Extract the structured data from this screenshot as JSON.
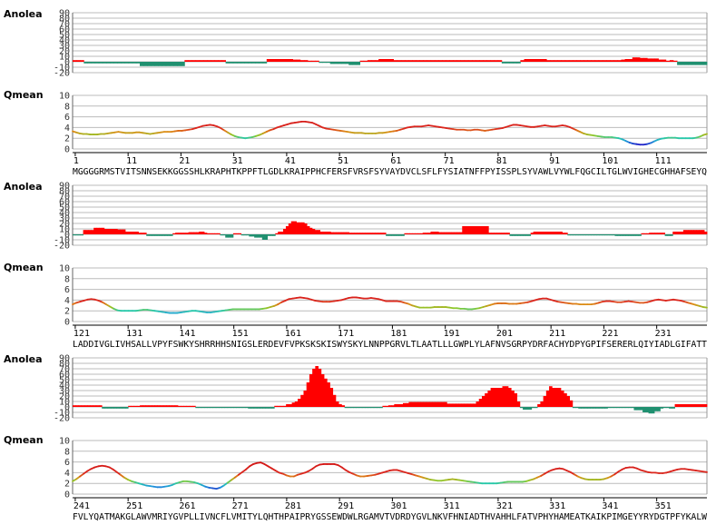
{
  "residue_count": 360,
  "per_block": 120,
  "labels": {
    "anolea": "Anolea",
    "qmean": "Qmean"
  },
  "anolea_ticks": [
    "90",
    "80",
    "70",
    "60",
    "50",
    "40",
    "30",
    "20",
    "10",
    "0",
    "-10",
    "-20"
  ],
  "qmean_ticks": [
    "10",
    "8",
    "6",
    "4",
    "2",
    "0"
  ],
  "colors": {
    "positive": "#ff0000",
    "negative": "#209070",
    "grid": "#bbbbbb"
  },
  "blocks": [
    {
      "start": 1,
      "sequence": "MGGGGRMSTVITSNNSEKKGGSSHLKRAPHTKPPFTLGDLKRAIPPHCFERSFVRSFSYVAYDVCLSFLFYSIATNFFPYISSPLSYVAWLVYWLFQGCILTGLWVIGHECGHHAFSEYQ",
      "numbers": [
        "1",
        "11",
        "21",
        "31",
        "41",
        "51",
        "61",
        "71",
        "81",
        "91",
        "101",
        "111"
      ],
      "anolea": [
        3,
        3,
        3,
        -3,
        -3,
        -3,
        -3,
        -3,
        -3,
        -3,
        -3,
        -3,
        -3,
        -3,
        -3,
        -3,
        -3,
        -3,
        -8,
        -8,
        -8,
        -8,
        -8,
        -8,
        -8,
        -8,
        -8,
        -8,
        -8,
        -8,
        3,
        3,
        3,
        3,
        3,
        3,
        3,
        3,
        3,
        3,
        3,
        -3,
        -3,
        -3,
        -3,
        -3,
        -3,
        -3,
        -3,
        -3,
        -3,
        -3,
        5,
        5,
        5,
        5,
        5,
        5,
        5,
        4,
        4,
        3,
        3,
        2,
        2,
        2,
        -2,
        -2,
        -2,
        -4,
        -4,
        -4,
        -4,
        -4,
        -6,
        -6,
        -6,
        2,
        2,
        3,
        3,
        3,
        5,
        5,
        5,
        5,
        3,
        3,
        3,
        3,
        3,
        3,
        3,
        3,
        3,
        3,
        3,
        3,
        3,
        3,
        3,
        3,
        3,
        3,
        3,
        3,
        3,
        3,
        3,
        3,
        3,
        3,
        3,
        3,
        3,
        -3,
        -3,
        -3,
        -3,
        -3,
        3,
        5,
        5,
        5,
        5,
        5,
        5,
        3,
        3,
        3,
        3,
        3,
        3,
        3,
        3,
        3,
        3,
        3,
        3,
        3,
        3,
        3,
        3,
        3,
        3,
        3,
        3,
        4,
        5,
        5,
        8,
        8,
        7,
        7,
        6,
        6,
        6,
        4,
        4,
        2,
        3,
        2,
        -6,
        -6,
        -6,
        -6,
        -6,
        -6,
        -6,
        -6
      ],
      "qmean": [
        3.3,
        3.1,
        2.9,
        2.8,
        2.8,
        2.7,
        2.7,
        2.7,
        2.8,
        2.8,
        2.9,
        3.0,
        3.1,
        3.2,
        3.1,
        3.0,
        3.0,
        3.0,
        3.1,
        3.1,
        3.0,
        2.9,
        2.8,
        2.9,
        3.0,
        3.1,
        3.2,
        3.2,
        3.2,
        3.3,
        3.4,
        3.4,
        3.5,
        3.6,
        3.7,
        3.9,
        4.1,
        4.3,
        4.4,
        4.5,
        4.4,
        4.2,
        3.9,
        3.5,
        3.1,
        2.7,
        2.4,
        2.2,
        2.1,
        2.0,
        2.1,
        2.2,
        2.4,
        2.6,
        2.9,
        3.2,
        3.5,
        3.7,
        4.0,
        4.2,
        4.4,
        4.6,
        4.8,
        4.9,
        5.0,
        5.1,
        5.1,
        5.0,
        4.9,
        4.6,
        4.3,
        4.0,
        3.8,
        3.7,
        3.6,
        3.5,
        3.4,
        3.3,
        3.2,
        3.1,
        3.0,
        3.0,
        3.0,
        2.9,
        2.9,
        2.9,
        2.9,
        3.0,
        3.0,
        3.1,
        3.2,
        3.3,
        3.4,
        3.6,
        3.8,
        4.0,
        4.1,
        4.2,
        4.2,
        4.2,
        4.3,
        4.4,
        4.3,
        4.2,
        4.1,
        4.0,
        3.9,
        3.8,
        3.7,
        3.6,
        3.6,
        3.6,
        3.5,
        3.5,
        3.6,
        3.6,
        3.5,
        3.4,
        3.5,
        3.6,
        3.7,
        3.8,
        3.9,
        4.1,
        4.3,
        4.5,
        4.5,
        4.4,
        4.3,
        4.2,
        4.1,
        4.1,
        4.2,
        4.3,
        4.4,
        4.3,
        4.2,
        4.2,
        4.3,
        4.4,
        4.3,
        4.1,
        3.8,
        3.5,
        3.2,
        2.9,
        2.7,
        2.6,
        2.5,
        2.4,
        2.3,
        2.2,
        2.2,
        2.2,
        2.1,
        2.0,
        1.8,
        1.5,
        1.2,
        1.0,
        0.9,
        0.8,
        0.8,
        0.9,
        1.1,
        1.4,
        1.7,
        1.9,
        2.0,
        2.1,
        2.1,
        2.1,
        2.0,
        2.0,
        2.0,
        2.0,
        2.0,
        2.1,
        2.3,
        2.6,
        2.8
      ]
    },
    {
      "start": 121,
      "sequence": "LADDIVGLIVHSALLVPYFSWKYSHRRHHSNIGSLERDEVFVPKSKSKISWYSKYLNNPPGRVLTLAATLLLGWPLYLAFNVSGRPYDRFACHYDPYGPIFSERERLQIYIADLGIFATT",
      "numbers": [
        "121",
        "131",
        "141",
        "151",
        "161",
        "171",
        "181",
        "191",
        "201",
        "211",
        "221",
        "231"
      ],
      "anolea": [
        -2,
        -2,
        -2,
        -2,
        8,
        8,
        8,
        8,
        12,
        12,
        12,
        12,
        10,
        10,
        10,
        10,
        10,
        9,
        9,
        9,
        5,
        5,
        5,
        5,
        5,
        3,
        3,
        3,
        -3,
        -3,
        -3,
        -3,
        -3,
        -3,
        -3,
        -3,
        -3,
        -3,
        2,
        3,
        3,
        3,
        3,
        3,
        4,
        4,
        4,
        4,
        5,
        5,
        3,
        2,
        2,
        2,
        2,
        2,
        -2,
        -2,
        -6,
        -6,
        -6,
        2,
        2,
        2,
        -2,
        -2,
        -2,
        -4,
        -4,
        -6,
        -6,
        -6,
        -10,
        -10,
        -3,
        -3,
        -3,
        2,
        5,
        5,
        10,
        15,
        20,
        24,
        24,
        22,
        22,
        22,
        20,
        15,
        12,
        10,
        8,
        8,
        5,
        5,
        5,
        5,
        4,
        4,
        4,
        4,
        4,
        4,
        4,
        3,
        3,
        3,
        3,
        3,
        3,
        3,
        3,
        3,
        3,
        3,
        3,
        3,
        3,
        -3,
        -3,
        -3,
        -3,
        -3,
        -3,
        -3,
        2,
        2,
        2,
        2,
        2,
        2,
        2,
        3,
        3,
        3,
        5,
        5,
        5,
        4,
        4,
        4,
        4,
        4,
        4,
        4,
        4,
        4,
        15,
        15,
        15,
        15,
        15,
        15,
        15,
        15,
        15,
        15,
        3,
        3,
        3,
        3,
        3,
        3,
        3,
        3,
        -3,
        -3,
        -3,
        -3,
        -3,
        -3,
        -3,
        -3,
        3,
        5,
        5,
        5,
        5,
        5,
        5,
        5,
        5,
        5,
        5,
        5,
        3,
        3,
        -2,
        -2,
        -2,
        -2,
        -2,
        -2,
        -2,
        -2,
        -2,
        -2,
        -2,
        -2,
        -2,
        -2,
        -2,
        -2,
        -2,
        -2,
        -3,
        -3,
        -3,
        -3,
        -3,
        -3,
        -3,
        -3,
        -3,
        -3,
        2,
        2,
        2,
        3,
        3,
        3,
        3,
        3,
        3,
        -3,
        -3,
        -3,
        5,
        5,
        5,
        5,
        8,
        8,
        8,
        8,
        8,
        8,
        8,
        8,
        5
      ],
      "qmean": [
        3.2,
        3.5,
        3.7,
        3.9,
        4.1,
        4.2,
        4.1,
        3.9,
        3.6,
        3.2,
        2.8,
        2.4,
        2.1,
        2.0,
        2.0,
        2.0,
        2.0,
        2.0,
        2.1,
        2.2,
        2.2,
        2.1,
        2.0,
        1.9,
        1.8,
        1.7,
        1.6,
        1.6,
        1.6,
        1.7,
        1.8,
        1.9,
        2.0,
        2.0,
        1.9,
        1.8,
        1.7,
        1.7,
        1.8,
        1.9,
        2.0,
        2.1,
        2.2,
        2.3,
        2.3,
        2.3,
        2.3,
        2.3,
        2.3,
        2.3,
        2.3,
        2.4,
        2.5,
        2.7,
        2.9,
        3.2,
        3.6,
        3.9,
        4.2,
        4.3,
        4.4,
        4.5,
        4.4,
        4.3,
        4.1,
        3.9,
        3.8,
        3.7,
        3.7,
        3.7,
        3.8,
        3.9,
        4.0,
        4.2,
        4.4,
        4.5,
        4.5,
        4.4,
        4.3,
        4.3,
        4.4,
        4.3,
        4.2,
        4.0,
        3.8,
        3.8,
        3.8,
        3.8,
        3.7,
        3.5,
        3.3,
        3.0,
        2.8,
        2.6,
        2.6,
        2.6,
        2.6,
        2.7,
        2.7,
        2.7,
        2.7,
        2.6,
        2.5,
        2.5,
        2.4,
        2.4,
        2.3,
        2.3,
        2.4,
        2.5,
        2.7,
        2.9,
        3.1,
        3.3,
        3.4,
        3.4,
        3.4,
        3.3,
        3.3,
        3.3,
        3.4,
        3.5,
        3.6,
        3.8,
        4.0,
        4.2,
        4.3,
        4.3,
        4.1,
        3.9,
        3.7,
        3.6,
        3.5,
        3.4,
        3.3,
        3.3,
        3.2,
        3.2,
        3.2,
        3.2,
        3.3,
        3.5,
        3.7,
        3.8,
        3.8,
        3.7,
        3.6,
        3.6,
        3.7,
        3.8,
        3.7,
        3.6,
        3.5,
        3.5,
        3.6,
        3.8,
        4.0,
        4.1,
        4.0,
        3.9,
        4.0,
        4.1,
        4.0,
        3.9,
        3.7,
        3.5,
        3.3,
        3.1,
        2.9,
        2.7,
        2.6
      ]
    },
    {
      "start": 241,
      "sequence": "FVLYQATMAKGLAWVMRIYGVPLLIVNCFLVMITYLQHTHPAIPRYGSSEWDWLRGAMVTVDRDYGVLNKVFHNIADTHVAHHLFATVPHYHAMEATKAIKPIMGEYYRYDGTPFYKALW",
      "numbers": [
        "241",
        "251",
        "261",
        "271",
        "281",
        "291",
        "301",
        "311",
        "321",
        "331",
        "341",
        "351"
      ],
      "anolea": [
        3,
        3,
        3,
        3,
        3,
        3,
        3,
        3,
        3,
        3,
        -3,
        -3,
        -3,
        -3,
        -3,
        -3,
        -3,
        -3,
        -3,
        2,
        2,
        2,
        2,
        3,
        3,
        3,
        3,
        3,
        3,
        3,
        3,
        3,
        3,
        3,
        3,
        3,
        2,
        2,
        2,
        2,
        2,
        2,
        -2,
        -2,
        -2,
        -2,
        -2,
        -2,
        -2,
        -2,
        -2,
        -2,
        -2,
        -2,
        -2,
        -2,
        -2,
        -2,
        -2,
        -2,
        -3,
        -3,
        -3,
        -3,
        -3,
        -3,
        -3,
        -3,
        -3,
        2,
        2,
        2,
        2,
        5,
        5,
        8,
        10,
        15,
        22,
        30,
        45,
        60,
        70,
        75,
        70,
        60,
        52,
        45,
        35,
        22,
        10,
        5,
        3,
        -2,
        -2,
        -2,
        -2,
        -2,
        -2,
        -2,
        -2,
        -2,
        -2,
        -2,
        -2,
        -2,
        2,
        2,
        3,
        3,
        5,
        5,
        5,
        7,
        7,
        9,
        9,
        9,
        9,
        9,
        9,
        9,
        9,
        9,
        9,
        9,
        9,
        9,
        6,
        6,
        6,
        6,
        6,
        6,
        6,
        6,
        6,
        6,
        10,
        15,
        20,
        25,
        30,
        35,
        35,
        35,
        35,
        38,
        38,
        35,
        30,
        25,
        10,
        -2,
        -5,
        -5,
        -5,
        -2,
        -2,
        5,
        10,
        20,
        30,
        38,
        35,
        35,
        35,
        30,
        25,
        20,
        12,
        -2,
        -2,
        -3,
        -3,
        -3,
        -3,
        -3,
        -3,
        -3,
        -3,
        -3,
        -3,
        -2,
        -2,
        -2,
        -2,
        -2,
        -2,
        -2,
        -2,
        -2,
        -6,
        -6,
        -6,
        -10,
        -10,
        -12,
        -12,
        -8,
        -8,
        -3,
        -2,
        -2,
        -3,
        -3,
        5,
        5,
        5,
        5,
        5,
        5,
        5,
        5,
        5,
        5,
        5
      ],
      "qmean": [
        2.4,
        2.8,
        3.3,
        3.8,
        4.3,
        4.7,
        5.0,
        5.2,
        5.3,
        5.2,
        5.0,
        4.6,
        4.1,
        3.6,
        3.1,
        2.7,
        2.4,
        2.2,
        2.0,
        1.8,
        1.6,
        1.5,
        1.4,
        1.3,
        1.3,
        1.4,
        1.5,
        1.7,
        2.0,
        2.2,
        2.4,
        2.4,
        2.3,
        2.2,
        2.0,
        1.7,
        1.4,
        1.2,
        1.1,
        1.0,
        1.2,
        1.6,
        2.1,
        2.6,
        3.1,
        3.6,
        4.1,
        4.6,
        5.2,
        5.6,
        5.8,
        5.9,
        5.6,
        5.2,
        4.8,
        4.4,
        4.0,
        3.8,
        3.5,
        3.3,
        3.3,
        3.6,
        3.8,
        4.0,
        4.3,
        4.7,
        5.2,
        5.5,
        5.6,
        5.6,
        5.6,
        5.6,
        5.4,
        5.0,
        4.5,
        4.1,
        3.8,
        3.5,
        3.3,
        3.3,
        3.4,
        3.5,
        3.6,
        3.8,
        4.0,
        4.2,
        4.4,
        4.5,
        4.5,
        4.3,
        4.1,
        3.9,
        3.7,
        3.5,
        3.3,
        3.1,
        2.9,
        2.7,
        2.6,
        2.5,
        2.5,
        2.6,
        2.7,
        2.8,
        2.7,
        2.6,
        2.5,
        2.4,
        2.3,
        2.2,
        2.1,
        2.0,
        2.0,
        2.0,
        2.0,
        2.0,
        2.1,
        2.2,
        2.3,
        2.3,
        2.3,
        2.3,
        2.3,
        2.4,
        2.6,
        2.8,
        3.1,
        3.4,
        3.8,
        4.2,
        4.5,
        4.7,
        4.8,
        4.7,
        4.4,
        4.1,
        3.7,
        3.3,
        3.0,
        2.8,
        2.7,
        2.7,
        2.7,
        2.7,
        2.8,
        3.0,
        3.3,
        3.7,
        4.2,
        4.6,
        4.9,
        5.0,
        5.0,
        4.8,
        4.5,
        4.3,
        4.1,
        4.0,
        4.0,
        3.9,
        3.9,
        4.0,
        4.2,
        4.4,
        4.6,
        4.7,
        4.7,
        4.6,
        4.5,
        4.4,
        4.3,
        4.2,
        4.1
      ]
    }
  ],
  "chart_data": {
    "type": "bar",
    "series": [
      {
        "name": "Anolea",
        "type": "bar",
        "ylim": [
          -20,
          90
        ]
      },
      {
        "name": "Qmean",
        "type": "line",
        "ylim": [
          0,
          10
        ]
      }
    ]
  }
}
